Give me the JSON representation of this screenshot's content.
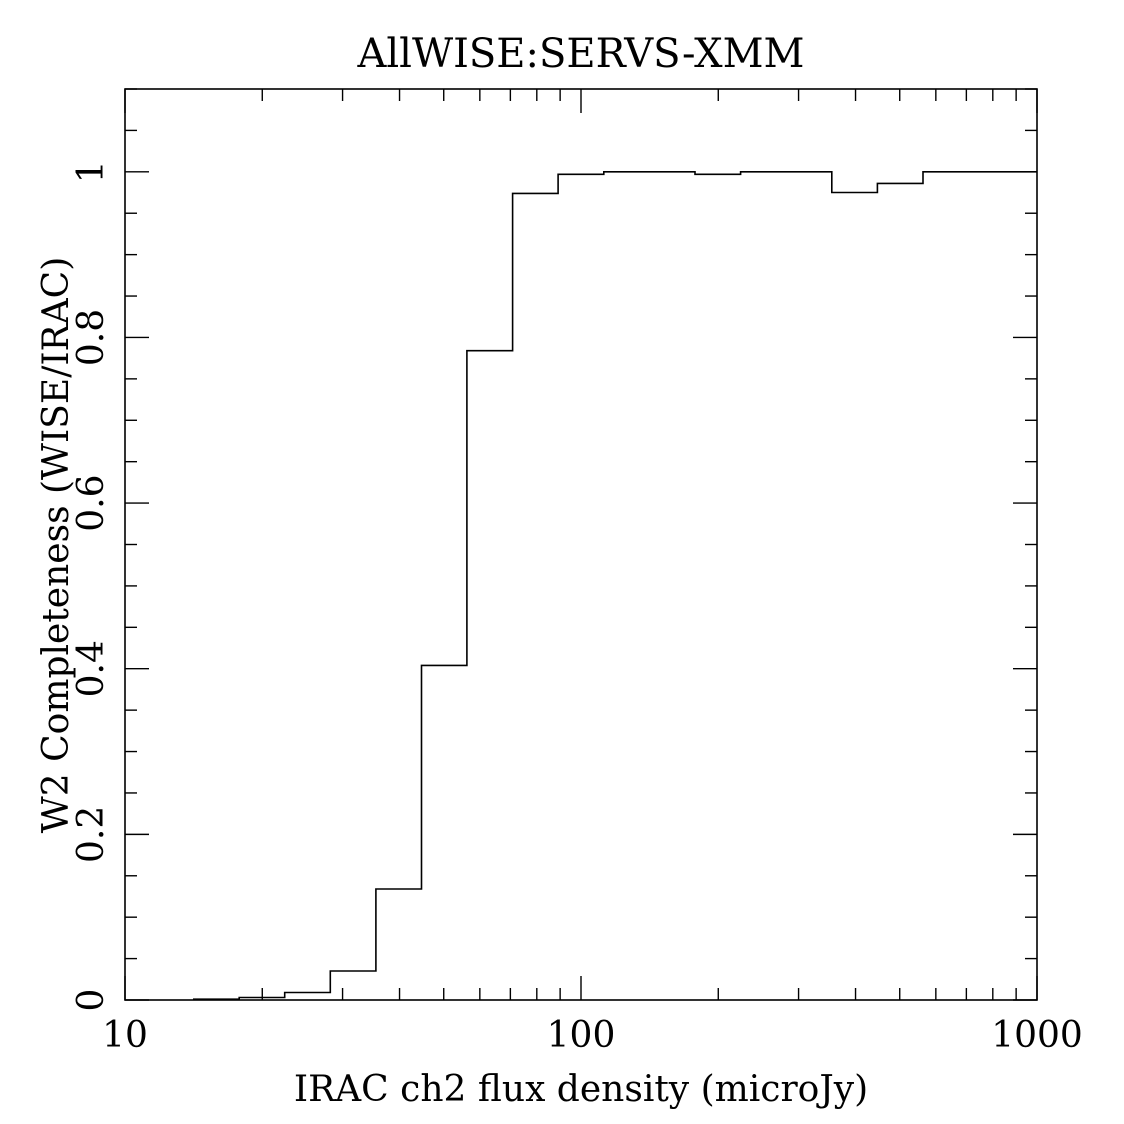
{
  "chart_data": {
    "type": "line",
    "title": "AllWISE:SERVS-XMM",
    "xlabel": "IRAC ch2 flux density (microJy)",
    "ylabel": "W2 Completeness (WISE/IRAC)",
    "xscale": "log",
    "xlim": [
      10,
      1000
    ],
    "ylim": [
      0,
      1.1
    ],
    "grid": false,
    "step": true,
    "xtick_labels": [
      "10",
      "100",
      "1000"
    ],
    "xtick_values": [
      10,
      100,
      1000
    ],
    "ytick_labels": [
      "0",
      "0.2",
      "0.4",
      "0.6",
      "0.8",
      "1"
    ],
    "ytick_values": [
      0,
      0.2,
      0.4,
      0.6,
      0.8,
      1
    ],
    "bin_edges": [
      14.1,
      17.8,
      22.4,
      28.2,
      35.5,
      44.7,
      56.2,
      70.8,
      89.1,
      112.2,
      141.3,
      177.8,
      223.9,
      281.8,
      354.8,
      446.7,
      562.3,
      707.9,
      891.3,
      1000
    ],
    "values": [
      0.001,
      0.003,
      0.009,
      0.035,
      0.134,
      0.404,
      0.784,
      0.974,
      0.997,
      1.0,
      1.0,
      0.997,
      1.0,
      1.0,
      0.975,
      0.986,
      1.0,
      1.0,
      1.0
    ]
  }
}
